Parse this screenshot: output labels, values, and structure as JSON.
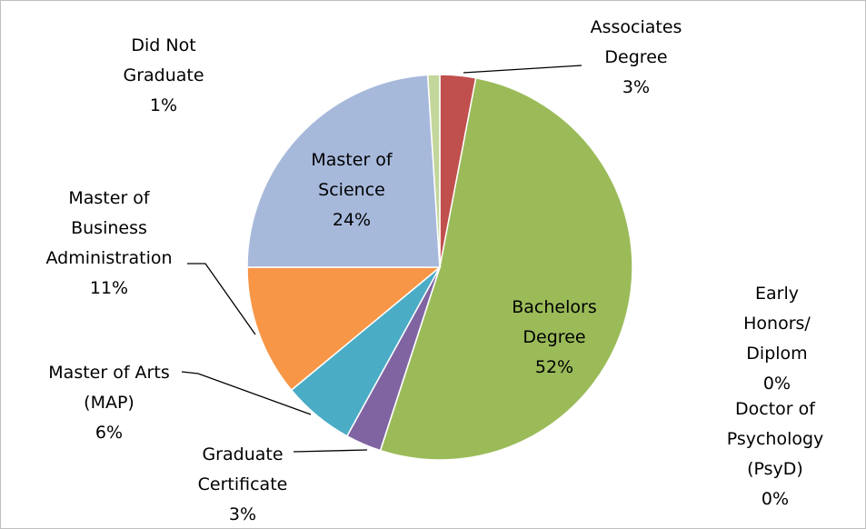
{
  "chart_data": {
    "type": "pie",
    "categories": [
      "Associates\nDegree",
      "Bachelors\nDegree",
      "Early Honors/\nDiplom",
      "Doctor of\nPsychology\n(PsyD)",
      "Graduate\nCertificate",
      "Master of Arts\n(MAP)",
      "Master of\nBusiness\nAdministration",
      "Master of\nScience",
      "Did Not\nGraduate"
    ],
    "values": [
      3,
      52,
      0,
      0,
      3,
      6,
      11,
      24,
      1
    ],
    "value_labels": [
      "3%",
      "52%",
      "0%",
      "0%",
      "3%",
      "6%",
      "11%",
      "24%",
      "1%"
    ],
    "colors": [
      "#c0504d",
      "#9bbb59",
      "#4f81bd",
      "#f2dcdb",
      "#8064a2",
      "#4bacc6",
      "#f79646",
      "#a7b9db",
      "#c3d69b"
    ]
  }
}
